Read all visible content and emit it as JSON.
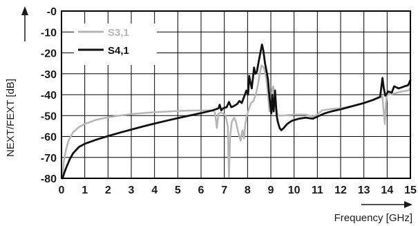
{
  "chart_data": {
    "type": "line",
    "title": "",
    "xlabel": "Frequency [GHz]",
    "ylabel": "NEXT/FEXT [dB]",
    "xlim": [
      0,
      15
    ],
    "ylim": [
      -80,
      0
    ],
    "x_ticks": [
      "0",
      "1",
      "2",
      "3",
      "4",
      "5",
      "6",
      "7",
      "8",
      "9",
      "10",
      "11",
      "12",
      "13",
      "14",
      "15"
    ],
    "y_ticks": [
      "-0",
      "-10",
      "-20",
      "-30",
      "-40",
      "-50",
      "-60",
      "-70",
      "-80"
    ],
    "grid": true,
    "legend_position": "top-left",
    "series": [
      {
        "name": "S3,1",
        "color": "#b5b5b5",
        "points": [
          [
            0.05,
            -80
          ],
          [
            0.1,
            -72
          ],
          [
            0.2,
            -66
          ],
          [
            0.3,
            -62
          ],
          [
            0.5,
            -58
          ],
          [
            0.75,
            -55.5
          ],
          [
            1,
            -54
          ],
          [
            1.5,
            -52
          ],
          [
            2,
            -50.8
          ],
          [
            2.5,
            -50
          ],
          [
            3,
            -49.3
          ],
          [
            3.5,
            -48.8
          ],
          [
            4,
            -48.4
          ],
          [
            4.5,
            -48.1
          ],
          [
            5,
            -47.8
          ],
          [
            5.5,
            -47.6
          ],
          [
            6,
            -47.5
          ],
          [
            6.3,
            -47.5
          ],
          [
            6.5,
            -47.6
          ],
          [
            6.6,
            -48.5
          ],
          [
            6.68,
            -56
          ],
          [
            6.75,
            -49
          ],
          [
            6.85,
            -48.5
          ],
          [
            6.95,
            -49
          ],
          [
            7.05,
            -50
          ],
          [
            7.15,
            -55
          ],
          [
            7.2,
            -80
          ],
          [
            7.25,
            -60
          ],
          [
            7.32,
            -53
          ],
          [
            7.42,
            -51
          ],
          [
            7.5,
            -53
          ],
          [
            7.6,
            -58
          ],
          [
            7.7,
            -62
          ],
          [
            7.78,
            -57
          ],
          [
            7.85,
            -61
          ],
          [
            7.9,
            -54
          ],
          [
            7.97,
            -50
          ],
          [
            8.05,
            -47
          ],
          [
            8.15,
            -44
          ],
          [
            8.25,
            -43
          ],
          [
            8.35,
            -40
          ],
          [
            8.45,
            -35
          ],
          [
            8.52,
            -30
          ],
          [
            8.6,
            -26
          ],
          [
            8.7,
            -27
          ],
          [
            8.8,
            -32
          ],
          [
            8.88,
            -40
          ],
          [
            8.94,
            -48
          ],
          [
            9.0,
            -44
          ],
          [
            9.05,
            -38
          ],
          [
            9.1,
            -36
          ],
          [
            9.15,
            -40
          ],
          [
            9.22,
            -46
          ],
          [
            9.3,
            -50
          ],
          [
            9.5,
            -50
          ],
          [
            10,
            -49.5
          ],
          [
            10.5,
            -49.5
          ],
          [
            10.8,
            -50.5
          ],
          [
            11,
            -49.5
          ],
          [
            11.2,
            -47.5
          ],
          [
            11.5,
            -47
          ],
          [
            12,
            -46.5
          ],
          [
            12.5,
            -45.5
          ],
          [
            13,
            -44
          ],
          [
            13.5,
            -42
          ],
          [
            13.8,
            -41
          ],
          [
            13.85,
            -48
          ],
          [
            13.9,
            -54
          ],
          [
            13.95,
            -44
          ],
          [
            14,
            -40
          ],
          [
            14.3,
            -39.5
          ],
          [
            14.6,
            -38.5
          ],
          [
            14.9,
            -38
          ],
          [
            15,
            -37
          ]
        ]
      },
      {
        "name": "S4,1",
        "color": "#111111",
        "points": [
          [
            0.05,
            -80
          ],
          [
            0.1,
            -78
          ],
          [
            0.2,
            -75
          ],
          [
            0.35,
            -71
          ],
          [
            0.5,
            -68
          ],
          [
            0.75,
            -65
          ],
          [
            1,
            -63.5
          ],
          [
            1.5,
            -61.5
          ],
          [
            2,
            -59.8
          ],
          [
            2.5,
            -58.2
          ],
          [
            3,
            -56.7
          ],
          [
            3.5,
            -55.2
          ],
          [
            4,
            -53.8
          ],
          [
            4.5,
            -52.5
          ],
          [
            5,
            -51.2
          ],
          [
            5.5,
            -50
          ],
          [
            6,
            -48.8
          ],
          [
            6.5,
            -47.5
          ],
          [
            6.75,
            -46.5
          ],
          [
            6.8,
            -44.8
          ],
          [
            6.87,
            -47.5
          ],
          [
            6.95,
            -46.5
          ],
          [
            7.1,
            -46
          ],
          [
            7.2,
            -43.5
          ],
          [
            7.3,
            -46
          ],
          [
            7.4,
            -45.5
          ],
          [
            7.55,
            -44.5
          ],
          [
            7.65,
            -43
          ],
          [
            7.75,
            -44
          ],
          [
            7.85,
            -41
          ],
          [
            7.95,
            -38
          ],
          [
            8.02,
            -40
          ],
          [
            8.07,
            -31
          ],
          [
            8.12,
            -34
          ],
          [
            8.18,
            -37
          ],
          [
            8.22,
            -33
          ],
          [
            8.28,
            -27
          ],
          [
            8.33,
            -30
          ],
          [
            8.4,
            -29
          ],
          [
            8.48,
            -24
          ],
          [
            8.55,
            -20
          ],
          [
            8.62,
            -16
          ],
          [
            8.68,
            -19
          ],
          [
            8.75,
            -25
          ],
          [
            8.82,
            -29
          ],
          [
            8.88,
            -33
          ],
          [
            8.93,
            -40
          ],
          [
            8.97,
            -44
          ],
          [
            9.02,
            -49
          ],
          [
            9.06,
            -40
          ],
          [
            9.12,
            -48
          ],
          [
            9.18,
            -38
          ],
          [
            9.25,
            -50
          ],
          [
            9.3,
            -53
          ],
          [
            9.38,
            -56
          ],
          [
            9.45,
            -57
          ],
          [
            9.55,
            -56
          ],
          [
            9.7,
            -54
          ],
          [
            9.9,
            -52.5
          ],
          [
            10.2,
            -51.5
          ],
          [
            10.5,
            -51
          ],
          [
            10.8,
            -51.5
          ],
          [
            11,
            -50.5
          ],
          [
            11.3,
            -49
          ],
          [
            11.6,
            -48
          ],
          [
            12,
            -47
          ],
          [
            12.5,
            -45.5
          ],
          [
            13,
            -44
          ],
          [
            13.4,
            -42.5
          ],
          [
            13.7,
            -41
          ],
          [
            13.75,
            -36.5
          ],
          [
            13.8,
            -32
          ],
          [
            13.85,
            -36.5
          ],
          [
            13.92,
            -40.5
          ],
          [
            14.05,
            -38.5
          ],
          [
            14.2,
            -39
          ],
          [
            14.3,
            -36
          ],
          [
            14.5,
            -37
          ],
          [
            14.75,
            -36
          ],
          [
            14.9,
            -35.5
          ],
          [
            15,
            -33
          ]
        ]
      }
    ]
  }
}
